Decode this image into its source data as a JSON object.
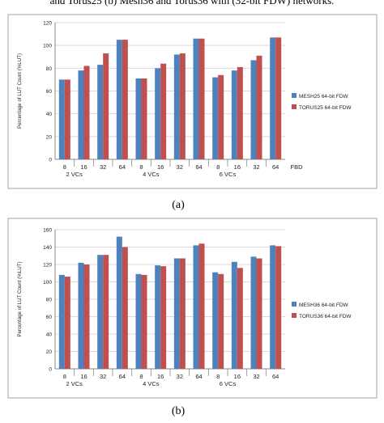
{
  "top_caption": "and Torus25 (b) Mesh36 and Torus36 with (32-bit FDW) networks.",
  "charts": [
    {
      "label": "(a)",
      "ylabel": "Percentage of LUT Count (%LUT)",
      "xlabel_end": "FBD",
      "categories": [
        "8",
        "16",
        "32",
        "64",
        "8",
        "16",
        "32",
        "64",
        "8",
        "16",
        "32",
        "64"
      ],
      "groups": [
        "2 VCs",
        "4 VCs",
        "6 VCs"
      ],
      "yticks": [
        "0",
        "20",
        "40",
        "60",
        "80",
        "100",
        "120"
      ],
      "legend": [
        "MESH25 64-bit FDW",
        "TORUS25 64-bit FDW"
      ]
    },
    {
      "label": "(b)",
      "ylabel": "Percentage of LUT Count (%LUT)",
      "xlabel_end": "",
      "categories": [
        "8",
        "16",
        "32",
        "64",
        "8",
        "16",
        "32",
        "64",
        "8",
        "16",
        "32",
        "64"
      ],
      "groups": [
        "2 VCs",
        "4 VCs",
        "6 VCs"
      ],
      "yticks": [
        "0",
        "20",
        "40",
        "60",
        "80",
        "100",
        "120",
        "140",
        "160"
      ],
      "legend": [
        "MESH36 64-bit FDW",
        "TORUS36 64-bit FDW"
      ]
    }
  ],
  "colors": {
    "blue": "#4f81bd",
    "red": "#c0504d",
    "grid": "#d9d9d9",
    "frame": "#a6a6a6"
  },
  "chart_data": [
    {
      "type": "bar",
      "categories": [
        "8",
        "16",
        "32",
        "64",
        "8",
        "16",
        "32",
        "64",
        "8",
        "16",
        "32",
        "64"
      ],
      "ylim": [
        0,
        120
      ],
      "series": [
        {
          "name": "MESH25 64-bit FDW",
          "values": [
            70,
            78,
            83,
            105,
            71,
            80,
            92,
            106,
            72,
            78,
            87,
            107
          ]
        },
        {
          "name": "TORUS25 64-bit FDW",
          "values": [
            70,
            82,
            93,
            105,
            71,
            84,
            93,
            106,
            74,
            81,
            91,
            107
          ]
        }
      ]
    },
    {
      "type": "bar",
      "categories": [
        "8",
        "16",
        "32",
        "64",
        "8",
        "16",
        "32",
        "64",
        "8",
        "16",
        "32",
        "64"
      ],
      "ylim": [
        0,
        160
      ],
      "series": [
        {
          "name": "MESH36 64-bit FDW",
          "values": [
            108,
            122,
            131,
            152,
            109,
            119,
            127,
            142,
            111,
            123,
            129,
            142
          ]
        },
        {
          "name": "TORUS36 64-bit FDW",
          "values": [
            106,
            120,
            131,
            140,
            108,
            118,
            127,
            144,
            109,
            116,
            127,
            141
          ]
        }
      ]
    }
  ]
}
